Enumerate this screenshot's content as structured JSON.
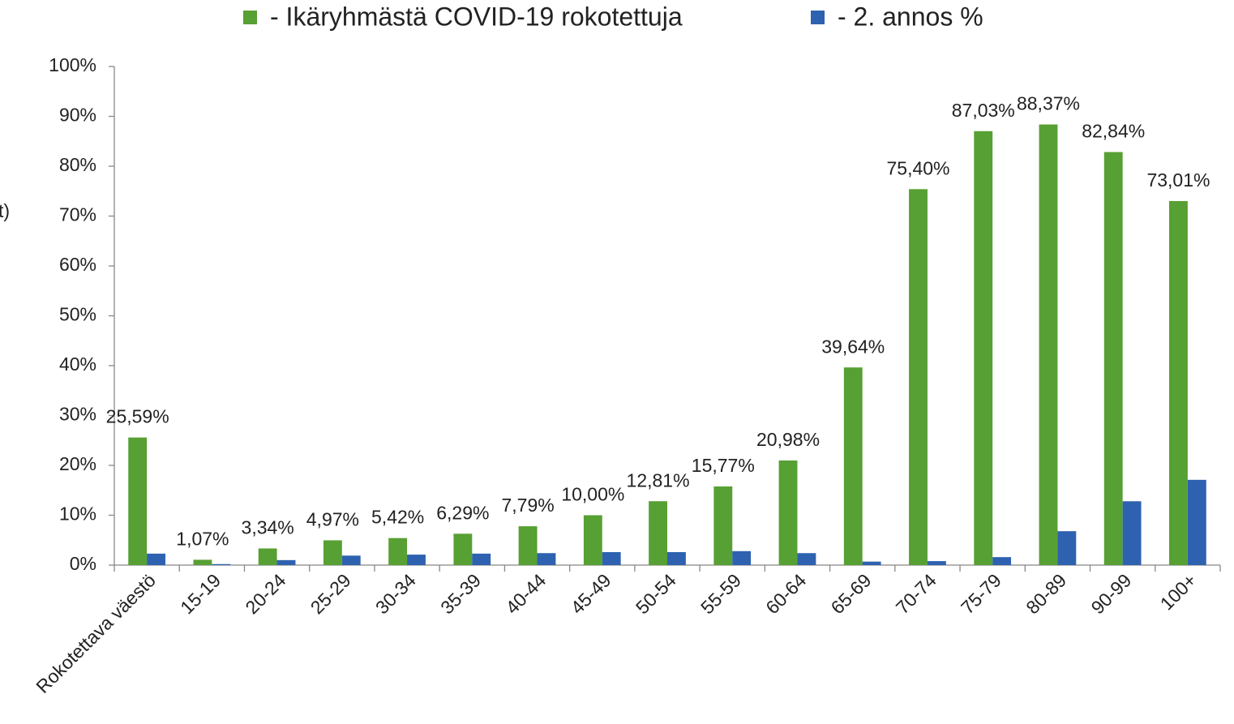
{
  "chart_data": {
    "type": "bar",
    "y_label": "t)",
    "categories": [
      "Rokotettava väestö",
      "15-19",
      "20-24",
      "25-29",
      "30-34",
      "35-39",
      "40-44",
      "45-49",
      "50-54",
      "55-59",
      "60-64",
      "65-69",
      "70-74",
      "75-79",
      "80-89",
      "90-99",
      "100+"
    ],
    "series": [
      {
        "name": "- Ikäryhmästä COVID-19 rokotettuja",
        "color": "#57a033",
        "values": [
          25.59,
          1.07,
          3.34,
          4.97,
          5.42,
          6.29,
          7.79,
          10.0,
          12.81,
          15.77,
          20.98,
          39.64,
          75.4,
          87.03,
          88.37,
          82.84,
          73.01
        ],
        "value_labels": [
          "25,59%",
          "1,07%",
          "3,34%",
          "4,97%",
          "5,42%",
          "6,29%",
          "7,79%",
          "10,00%",
          "12,81%",
          "15,77%",
          "20,98%",
          "39,64%",
          "75,40%",
          "87,03%",
          "88,37%",
          "82,84%",
          "73,01%"
        ]
      },
      {
        "name": "- 2. annos %",
        "color": "#2e62b0",
        "values": [
          2.3,
          0.2,
          1.0,
          1.9,
          2.1,
          2.3,
          2.4,
          2.6,
          2.6,
          2.8,
          2.4,
          0.7,
          0.8,
          1.6,
          6.8,
          12.8,
          17.1
        ]
      }
    ],
    "ylim": [
      0,
      100
    ],
    "yticks": [
      {
        "value": 0,
        "label": "0%"
      },
      {
        "value": 10,
        "label": "10%"
      },
      {
        "value": 20,
        "label": "20%"
      },
      {
        "value": 30,
        "label": "30%"
      },
      {
        "value": 40,
        "label": "40%"
      },
      {
        "value": 50,
        "label": "50%"
      },
      {
        "value": 60,
        "label": "60%"
      },
      {
        "value": 70,
        "label": "70%"
      },
      {
        "value": 80,
        "label": "80%"
      },
      {
        "value": 90,
        "label": "90%"
      },
      {
        "value": 100,
        "label": "100%"
      }
    ],
    "legend": "top",
    "grid": false
  }
}
